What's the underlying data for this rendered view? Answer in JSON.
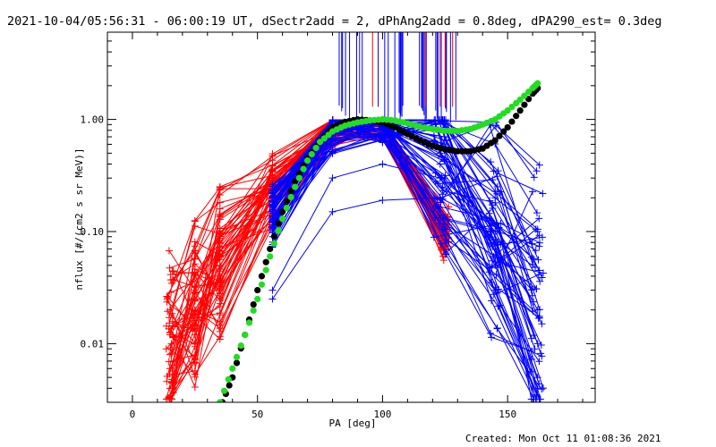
{
  "title": "2021-10-04/05:56:31 - 06:00:19 UT, dSectr2add = 2, dPhAng2add = 0.8deg, dPA290_est=  0.3deg",
  "footer": "Created: Mon Oct 11 01:08:36 2021",
  "colors": {
    "background": "#ffffff",
    "axes": "#000000",
    "red_series": "#ff0000",
    "blue_series": "#0000ff",
    "fit_black": "#000000",
    "fit_green": "#22dd22"
  },
  "chart_data": {
    "type": "line",
    "xlabel": "PA [deg]",
    "ylabel": "nflux [#/(cm2 s sr MeV)]",
    "xlim": [
      -10,
      185
    ],
    "ylim": [
      0.003,
      6
    ],
    "yscale": "log",
    "grid": false,
    "legend": "none",
    "x_ticks": [
      {
        "value": 0,
        "label": "0"
      },
      {
        "value": 50,
        "label": "50"
      },
      {
        "value": 100,
        "label": "100"
      },
      {
        "value": 150,
        "label": "150"
      }
    ],
    "y_ticks": [
      {
        "value": 0.01,
        "label": "0.01"
      },
      {
        "value": 0.1,
        "label": "0.10"
      },
      {
        "value": 1.0,
        "label": "1.00"
      }
    ],
    "red_x": [
      15,
      25,
      35,
      56,
      80,
      100,
      125
    ],
    "blue_x": [
      56,
      80,
      100,
      123,
      145,
      162
    ],
    "red_curves_typical": [
      [
        0.008,
        0.02,
        0.05,
        0.25,
        0.9,
        0.95,
        0.1
      ],
      [
        0.012,
        0.025,
        0.06,
        0.3,
        0.95,
        1.0,
        0.09
      ],
      [
        0.006,
        0.015,
        0.04,
        0.2,
        0.85,
        0.9,
        0.08
      ],
      [
        0.02,
        0.04,
        0.08,
        0.35,
        0.97,
        0.98,
        0.12
      ],
      [
        0.004,
        0.012,
        0.03,
        0.15,
        0.8,
        0.88,
        0.1
      ]
    ],
    "blue_curves_typical": [
      [
        0.2,
        0.9,
        0.95,
        0.3,
        0.05,
        0.005
      ],
      [
        0.15,
        0.8,
        0.9,
        0.4,
        0.1,
        0.02
      ],
      [
        0.1,
        0.7,
        0.85,
        0.5,
        0.2,
        0.1
      ],
      [
        0.03,
        0.3,
        0.4,
        0.3,
        0.08,
        0.01
      ],
      [
        0.025,
        0.15,
        0.19,
        0.2,
        0.03,
        0.004
      ]
    ],
    "series": [
      {
        "color": "black",
        "x": [
          36,
          40,
          45,
          50,
          55,
          60,
          65,
          70,
          75,
          80,
          85,
          90,
          95,
          100,
          105,
          110,
          115,
          120,
          125,
          130,
          135,
          140,
          145,
          150,
          155,
          160,
          162
        ],
        "values": [
          0.003,
          0.005,
          0.012,
          0.03,
          0.07,
          0.15,
          0.28,
          0.45,
          0.65,
          0.85,
          0.95,
          1.0,
          0.98,
          0.94,
          0.85,
          0.74,
          0.65,
          0.58,
          0.54,
          0.52,
          0.52,
          0.55,
          0.65,
          0.85,
          1.2,
          1.7,
          1.9
        ]
      },
      {
        "color": "green",
        "x": [
          35,
          40,
          45,
          50,
          55,
          60,
          65,
          70,
          75,
          80,
          85,
          90,
          95,
          100,
          105,
          110,
          115,
          120,
          125,
          130,
          135,
          140,
          145,
          150,
          155,
          160,
          162
        ],
        "values": [
          0.003,
          0.006,
          0.012,
          0.025,
          0.06,
          0.13,
          0.25,
          0.43,
          0.63,
          0.78,
          0.88,
          0.94,
          0.98,
          1.0,
          0.98,
          0.92,
          0.86,
          0.82,
          0.79,
          0.79,
          0.82,
          0.9,
          1.0,
          1.2,
          1.5,
          1.9,
          2.1
        ]
      }
    ]
  }
}
